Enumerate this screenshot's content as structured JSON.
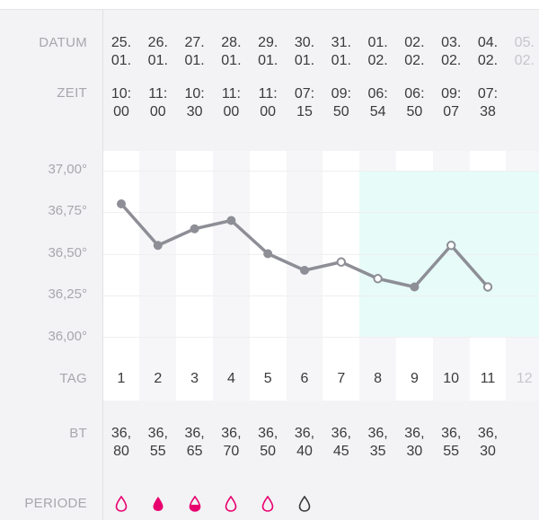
{
  "labels": {
    "date": "DATUM",
    "time": "ZEIT",
    "day": "TAG",
    "bt": "BT",
    "period": "PERIODE"
  },
  "y_axis": {
    "ticks": [
      "37,00°",
      "36,75°",
      "36,50°",
      "36,25°",
      "36,00°"
    ],
    "tick_values": [
      37.0,
      36.75,
      36.5,
      36.25,
      36.0
    ]
  },
  "colors": {
    "line": "#8d8e96",
    "fertile": "#e7fbf8",
    "period": "#e8006f",
    "spotting": "#3a3a3c"
  },
  "days": [
    {
      "date1": "25.",
      "date2": "01.",
      "time1": "10:",
      "time2": "00",
      "day": "1",
      "bt1": "36,",
      "bt2": "80",
      "temp": 36.8,
      "marker": "filled",
      "period": "outline",
      "faded": false
    },
    {
      "date1": "26.",
      "date2": "01.",
      "time1": "11:",
      "time2": "00",
      "day": "2",
      "bt1": "36,",
      "bt2": "55",
      "temp": 36.55,
      "marker": "filled",
      "period": "full",
      "faded": false
    },
    {
      "date1": "27.",
      "date2": "01.",
      "time1": "10:",
      "time2": "30",
      "day": "3",
      "bt1": "36,",
      "bt2": "65",
      "temp": 36.65,
      "marker": "filled",
      "period": "half",
      "faded": false
    },
    {
      "date1": "28.",
      "date2": "01.",
      "time1": "11:",
      "time2": "00",
      "day": "4",
      "bt1": "36,",
      "bt2": "70",
      "temp": 36.7,
      "marker": "filled",
      "period": "outline",
      "faded": false
    },
    {
      "date1": "29.",
      "date2": "01.",
      "time1": "11:",
      "time2": "00",
      "day": "5",
      "bt1": "36,",
      "bt2": "50",
      "temp": 36.5,
      "marker": "filled",
      "period": "outline",
      "faded": false
    },
    {
      "date1": "30.",
      "date2": "01.",
      "time1": "07:",
      "time2": "15",
      "day": "6",
      "bt1": "36,",
      "bt2": "40",
      "temp": 36.4,
      "marker": "filled",
      "period": "spotting",
      "faded": false
    },
    {
      "date1": "31.",
      "date2": "01.",
      "time1": "09:",
      "time2": "50",
      "day": "7",
      "bt1": "36,",
      "bt2": "45",
      "temp": 36.45,
      "marker": "open",
      "period": "",
      "faded": false
    },
    {
      "date1": "01.",
      "date2": "02.",
      "time1": "06:",
      "time2": "54",
      "day": "8",
      "bt1": "36,",
      "bt2": "35",
      "temp": 36.35,
      "marker": "open",
      "period": "",
      "faded": false
    },
    {
      "date1": "02.",
      "date2": "02.",
      "time1": "06:",
      "time2": "50",
      "day": "9",
      "bt1": "36,",
      "bt2": "30",
      "temp": 36.3,
      "marker": "filled",
      "period": "",
      "faded": false
    },
    {
      "date1": "03.",
      "date2": "02.",
      "time1": "09:",
      "time2": "07",
      "day": "10",
      "bt1": "36,",
      "bt2": "55",
      "temp": 36.55,
      "marker": "open",
      "period": "",
      "faded": false
    },
    {
      "date1": "04.",
      "date2": "02.",
      "time1": "07:",
      "time2": "38",
      "day": "11",
      "bt1": "36,",
      "bt2": "30",
      "temp": 36.3,
      "marker": "open",
      "period": "",
      "faded": false
    },
    {
      "date1": "05.",
      "date2": "02.",
      "time1": "",
      "time2": "",
      "day": "12",
      "bt1": "",
      "bt2": "",
      "temp": null,
      "marker": "",
      "period": "",
      "faded": true
    }
  ],
  "chart_data": {
    "type": "line",
    "categories": [
      "1",
      "2",
      "3",
      "4",
      "5",
      "6",
      "7",
      "8",
      "9",
      "10",
      "11",
      "12"
    ],
    "series": [
      {
        "values": [
          36.8,
          36.55,
          36.65,
          36.7,
          36.5,
          36.4,
          36.45,
          36.35,
          36.3,
          36.55,
          36.3,
          null
        ]
      }
    ],
    "ylim": [
      36.0,
      37.0
    ],
    "fertile_window_days": [
      "8",
      "12"
    ],
    "grid": true
  }
}
